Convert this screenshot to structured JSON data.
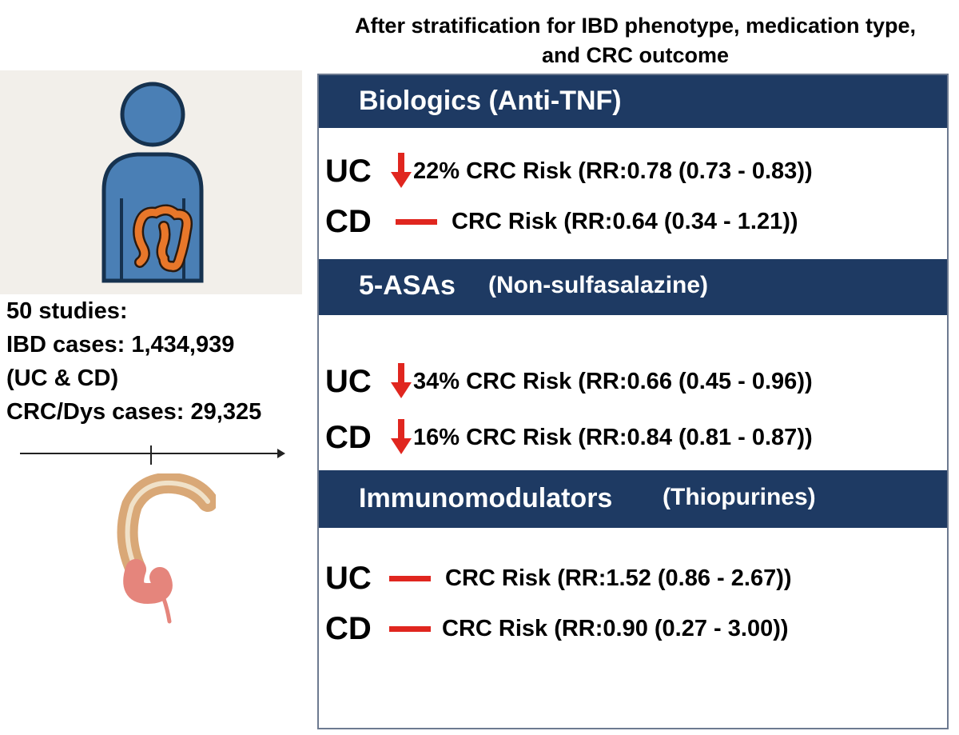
{
  "header": {
    "line1": "After stratification for IBD phenotype, medication type,",
    "line2": "and CRC outcome"
  },
  "left": {
    "stats": [
      "50 studies:",
      "IBD cases: 1,434,939",
      "(UC & CD)",
      "CRC/Dys cases: 29,325"
    ]
  },
  "sections": [
    {
      "title": "Biologics (Anti-TNF)",
      "subtitle": "",
      "rows": [
        {
          "group": "UC",
          "symbol": "down-arrow",
          "text": "22% CRC Risk (RR:0.78 (0.73 - 0.83))"
        },
        {
          "group": "CD",
          "symbol": "dash",
          "text": "CRC Risk (RR:0.64 (0.34 - 1.21))"
        }
      ]
    },
    {
      "title": "5-ASAs",
      "subtitle": "(Non-sulfasalazine)",
      "rows": [
        {
          "group": "UC",
          "symbol": "down-arrow",
          "text": "34% CRC Risk (RR:0.66 (0.45 - 0.96))"
        },
        {
          "group": "CD",
          "symbol": "down-arrow",
          "text": "16% CRC Risk (RR:0.84 (0.81 - 0.87))"
        }
      ]
    },
    {
      "title": "Immunomodulators",
      "subtitle": "(Thiopurines)",
      "rows": [
        {
          "group": "UC",
          "symbol": "dash",
          "text": "CRC Risk (RR:1.52 (0.86 - 2.67))"
        },
        {
          "group": "CD",
          "symbol": "dash",
          "text": "CRC Risk (RR:0.90 (0.27 - 3.00))"
        }
      ]
    }
  ],
  "colors": {
    "band": "#1e3a63",
    "indicator": "#e0261f",
    "person": "#4a7fb5",
    "colon": "#e8772a"
  }
}
